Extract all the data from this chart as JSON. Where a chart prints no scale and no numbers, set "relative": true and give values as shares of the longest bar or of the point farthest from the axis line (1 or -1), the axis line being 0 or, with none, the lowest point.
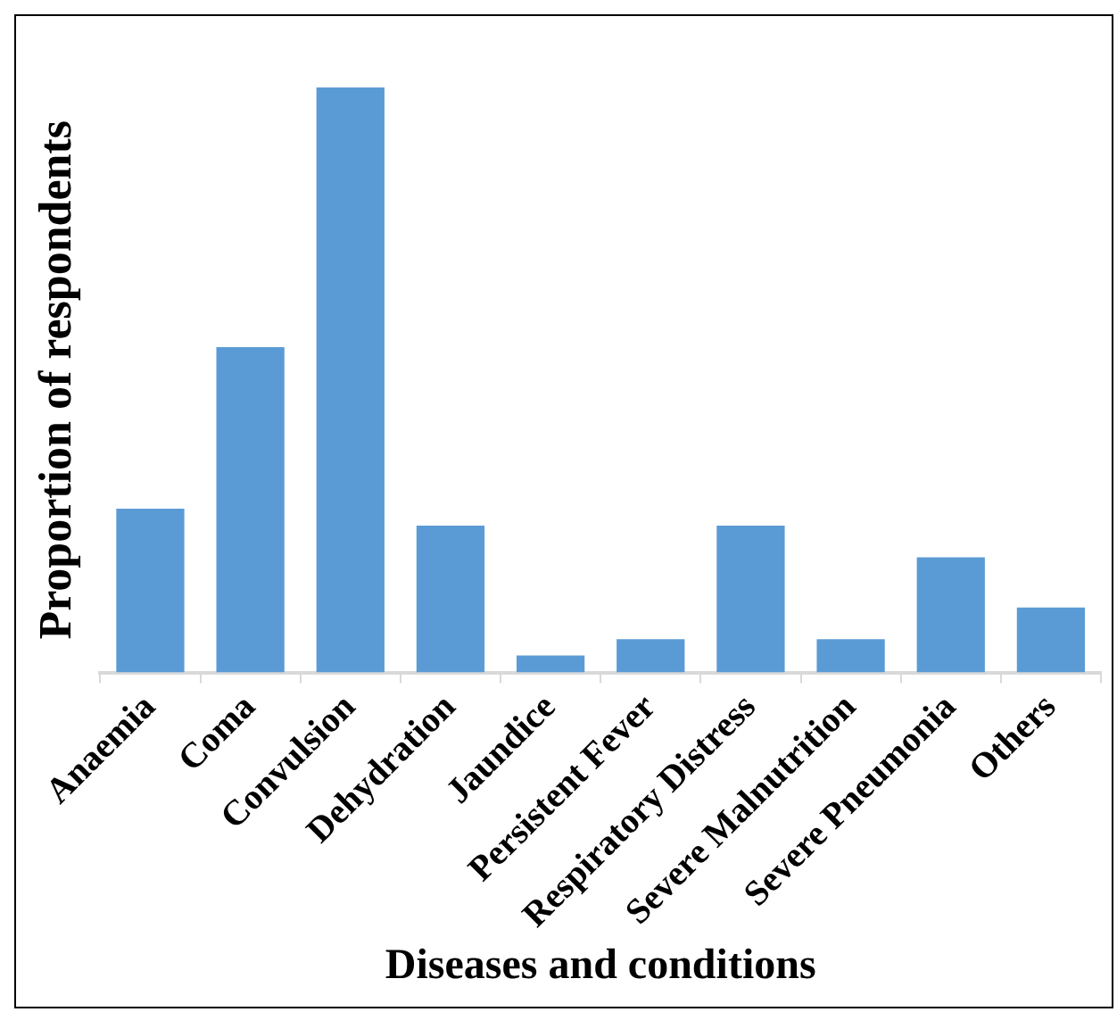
{
  "chart_data": {
    "type": "bar",
    "xlabel": "Diseases and conditions",
    "ylabel": "Proportion of respondents",
    "relative": true,
    "categories": [
      "Anaemia",
      "Coma",
      "Convulsion",
      "Dehydration",
      "Jaundice",
      "Persistent Fever",
      "Respiratory Distress",
      "Severe Malnutrition",
      "Severe Pneumonia",
      "Others"
    ],
    "values": [
      0.28,
      0.556,
      1,
      0.251,
      0.029,
      0.057,
      0.251,
      0.057,
      0.197,
      0.111
    ],
    "color": "#5b9bd5",
    "grid": false,
    "legend": false
  }
}
